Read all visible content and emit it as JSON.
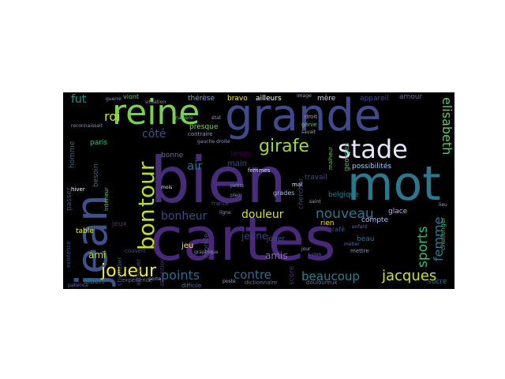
{
  "cloud": {
    "background": "#000000",
    "words": {
      "bien": "bien",
      "cartes": "cartes",
      "mot": "mot",
      "grande": "grande",
      "jean": "jean",
      "reine": "reine",
      "stade": "stade",
      "tour": "tour",
      "bon": "bon",
      "joueur": "joueur",
      "jacques": "jacques",
      "girafe": "girafe",
      "elisabeth": "elisabeth",
      "femme": "femme",
      "sports": "sports",
      "nouveau": "nouveau",
      "points": "points",
      "contre": "contre",
      "beaucoup": "beaucoup",
      "douleur": "douleur",
      "bonheur": "bonheur",
      "roi": "roi",
      "fut": "fut",
      "côté": "côté",
      "air": "air",
      "ami": "ami",
      "amis": "amis",
      "jeune": "jeune",
      "main": "main",
      "jeux": "jeux",
      "table": "table",
      "paris": "paris",
      "homme": "homme",
      "besoin": "besoin",
      "presque": "presque",
      "laisse": "laisse",
      "bravo": "bravo",
      "ailleurs": "ailleurs",
      "mère": "mère",
      "appareil": "appareil",
      "amour": "amour",
      "thérèse": "thérèse",
      "possibilités": "possibilités",
      "travail": "travail",
      "belgique": "belgique",
      "georges": "georges",
      "rien": "rien",
      "glace": "glace",
      "compte": "compte",
      "beau": "beau",
      "challenger": "challenger",
      "sucre": "sucre",
      "jouer": "jouer",
      "score": "score",
      "chercher": "chercher",
      "grades": "grades",
      "monde": "monde",
      "jeu": "jeu",
      "bonne": "bonne",
      "attention": "attention",
      "albert": "albert",
      "chevalier": "chevalier",
      "passer": "passer",
      "viont": "viont",
      "attaquer": "attaquer",
      "café": "café",
      "dictionnaire": "dictionnaire",
      "difficile": "difficile",
      "douloureux": "douloureux",
      "existence": "existence",
      "contraire": "contraire",
      "france": "france",
      "hiver": "hiver",
      "génie": "génie",
      "droit": "droit",
      "couvert": "couvert",
      "intérieur": "intérieur",
      "mettre": "mettre",
      "malheur": "malheur",
      "femmes": "femmes",
      "expérience": "expérience",
      "poste": "poste",
      "manière": "manière",
      "enfant": "enfant",
      "mal": "mal",
      "jour": "jour",
      "mois": "mois",
      "non": "non",
      "savait": "savait",
      "reconnaissait": "reconnaissait",
      "guerre": "guerre",
      "situation": "situation",
      "plein": "plein",
      "gauche": "gauche",
      "petits": "petits",
      "ligne": "ligne",
      "métier": "métier",
      "patience": "patience",
      "porte": "porte",
      "saint": "saint",
      "image": "image",
      "lieu": "lieu",
      "droite": "droite",
      "état": "état",
      "graphique": "graphique"
    }
  }
}
